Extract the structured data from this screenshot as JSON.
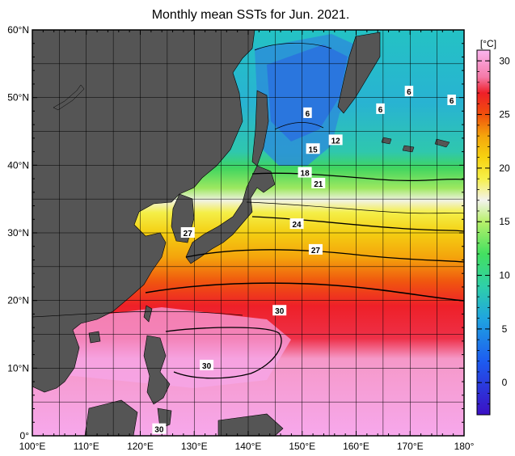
{
  "title": "Monthly mean SSTs for Jun. 2021.",
  "map": {
    "lon_range": [
      100,
      180
    ],
    "lat_range": [
      0,
      60
    ],
    "lon_ticks": [
      "100°E",
      "110°E",
      "120°E",
      "130°E",
      "140°E",
      "150°E",
      "160°E",
      "170°E",
      "180°"
    ],
    "lat_ticks": [
      "0°",
      "10°N",
      "20°N",
      "30°N",
      "40°N",
      "50°N",
      "60°N"
    ],
    "land_color": "#555555",
    "grid": true
  },
  "contour_labels": [
    {
      "text": "6",
      "lon": 151.0,
      "lat": 47.7
    },
    {
      "text": "6",
      "lon": 164.5,
      "lat": 48.3
    },
    {
      "text": "6",
      "lon": 169.8,
      "lat": 50.9
    },
    {
      "text": "6",
      "lon": 177.7,
      "lat": 49.6
    },
    {
      "text": "12",
      "lon": 156.2,
      "lat": 43.7
    },
    {
      "text": "15",
      "lon": 152.0,
      "lat": 42.4
    },
    {
      "text": "18",
      "lon": 150.5,
      "lat": 38.9
    },
    {
      "text": "21",
      "lon": 153.0,
      "lat": 37.3
    },
    {
      "text": "24",
      "lon": 149.0,
      "lat": 31.3
    },
    {
      "text": "27",
      "lon": 128.8,
      "lat": 30.0
    },
    {
      "text": "27",
      "lon": 152.5,
      "lat": 27.5
    },
    {
      "text": "30",
      "lon": 145.8,
      "lat": 18.5
    },
    {
      "text": "30",
      "lon": 132.3,
      "lat": 10.4
    },
    {
      "text": "30",
      "lon": 123.5,
      "lat": 1.0
    }
  ],
  "colorbar": {
    "unit": "[°C]",
    "min": -3,
    "max": 31,
    "ticks": [
      {
        "value": 0,
        "label": "0"
      },
      {
        "value": 5,
        "label": "5"
      },
      {
        "value": 10,
        "label": "10"
      },
      {
        "value": 15,
        "label": "15"
      },
      {
        "value": 20,
        "label": "20"
      },
      {
        "value": 25,
        "label": "25"
      },
      {
        "value": 30,
        "label": "30"
      }
    ],
    "stops": [
      {
        "value": -3,
        "color": "#3b10c4"
      },
      {
        "value": 2,
        "color": "#1d5cf0"
      },
      {
        "value": 6,
        "color": "#1fa5e0"
      },
      {
        "value": 9,
        "color": "#2fd0a8"
      },
      {
        "value": 12,
        "color": "#43e060"
      },
      {
        "value": 15,
        "color": "#b7f06a"
      },
      {
        "value": 17,
        "color": "#f3f3ee"
      },
      {
        "value": 19,
        "color": "#f6f04a"
      },
      {
        "value": 21,
        "color": "#f7d210"
      },
      {
        "value": 23,
        "color": "#f5a50c"
      },
      {
        "value": 25,
        "color": "#f0500c"
      },
      {
        "value": 27,
        "color": "#ef1f28"
      },
      {
        "value": 28.5,
        "color": "#f57aa8"
      },
      {
        "value": 31,
        "color": "#fab5ef"
      }
    ]
  }
}
